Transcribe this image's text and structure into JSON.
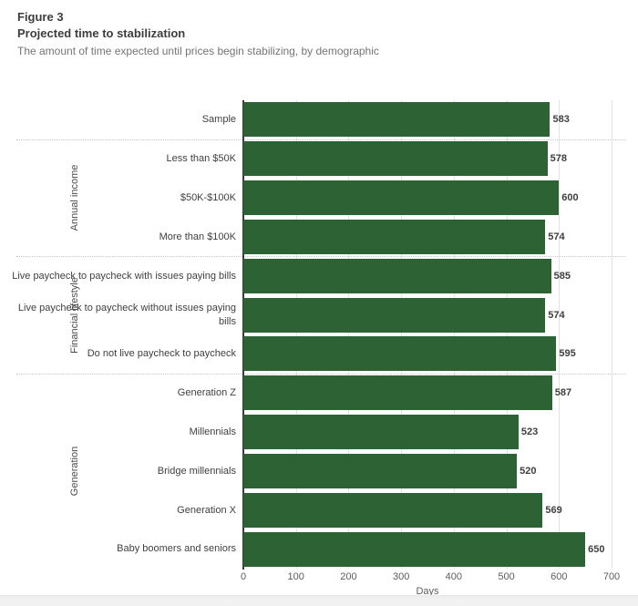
{
  "header": {
    "figure_label": "Figure 3",
    "title": "Projected time to stabilization",
    "subtitle": "The amount of time expected until prices begin stabilizing, by demographic"
  },
  "chart_data": {
    "type": "bar",
    "orientation": "horizontal",
    "title": "Projected time to stabilization",
    "xlabel": "Days",
    "ylabel": "",
    "xlim": [
      0,
      700
    ],
    "xticks": [
      0,
      100,
      200,
      300,
      400,
      500,
      600,
      700
    ],
    "grid": true,
    "legend_position": "none",
    "bar_color": "#2c6234",
    "groups": [
      {
        "label": "",
        "rows": [
          {
            "label": "Sample",
            "value": 583
          }
        ]
      },
      {
        "label": "Annual income",
        "rows": [
          {
            "label": "Less than $50K",
            "value": 578
          },
          {
            "label": "$50K-$100K",
            "value": 600
          },
          {
            "label": "More than $100K",
            "value": 574
          }
        ]
      },
      {
        "label": "Financial lifestyle",
        "rows": [
          {
            "label": "Live paycheck to paycheck with issues paying bills",
            "value": 585
          },
          {
            "label": "Live paycheck to paycheck without issues paying bills",
            "value": 574
          },
          {
            "label": "Do not live paycheck to paycheck",
            "value": 595
          }
        ]
      },
      {
        "label": "Generation",
        "rows": [
          {
            "label": "Generation Z",
            "value": 587
          },
          {
            "label": "Millennials",
            "value": 523
          },
          {
            "label": "Bridge millennials",
            "value": 520
          },
          {
            "label": "Generation X",
            "value": 569
          },
          {
            "label": "Baby boomers and seniors",
            "value": 650
          }
        ]
      }
    ]
  }
}
